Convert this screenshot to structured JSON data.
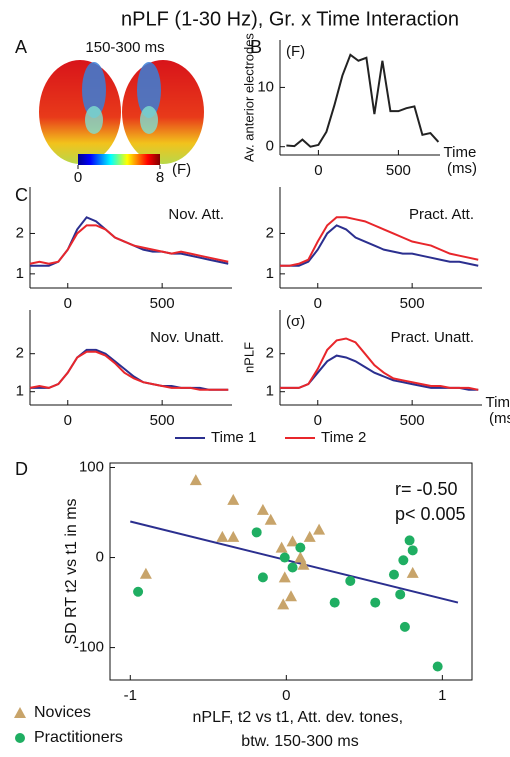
{
  "figure": {
    "title": "nPLF (1-30 Hz), Gr. x Time Interaction"
  },
  "chart_data": [
    {
      "type": "topography",
      "label": "A",
      "title": "150-300 ms",
      "colorbar_ticks": [
        0,
        8
      ],
      "colorbar_label": "(F)"
    },
    {
      "type": "line",
      "label": "B",
      "ylabel": "Av. anterior electrodes",
      "annotation": "(F)",
      "xlabel": "Time (ms)",
      "x": [
        -200,
        -150,
        -100,
        -50,
        0,
        50,
        100,
        150,
        200,
        250,
        300,
        350,
        400,
        450,
        500,
        550,
        600,
        650,
        700,
        750
      ],
      "xlim": [
        -240,
        760
      ],
      "xticks": [
        0,
        500
      ],
      "ylim": [
        -1.4,
        18
      ],
      "yticks": [
        0,
        10
      ],
      "series": [
        {
          "color": "#222222",
          "values": [
            0.2,
            0.1,
            1.2,
            0,
            0.3,
            2.5,
            7,
            12,
            15.5,
            14.5,
            15,
            5.5,
            14.5,
            6,
            6,
            6.5,
            6.8,
            2,
            2.3,
            0.8
          ]
        }
      ]
    },
    {
      "type": "line",
      "label": "C",
      "title": "Nov. Att.",
      "x": [
        -200,
        -150,
        -100,
        -50,
        0,
        50,
        100,
        150,
        200,
        250,
        300,
        350,
        400,
        450,
        500,
        550,
        600,
        650,
        700,
        750,
        800,
        850
      ],
      "xlim": [
        -200,
        870
      ],
      "xticks": [
        0,
        500
      ],
      "ylim": [
        0.65,
        3.15
      ],
      "yticks": [
        1,
        2
      ],
      "series": [
        {
          "color": "#2b2f8f",
          "values": [
            1.2,
            1.2,
            1.2,
            1.3,
            1.6,
            2.1,
            2.4,
            2.3,
            2.1,
            1.9,
            1.8,
            1.7,
            1.6,
            1.55,
            1.55,
            1.5,
            1.5,
            1.45,
            1.4,
            1.35,
            1.3,
            1.25
          ]
        },
        {
          "color": "#e8262b",
          "values": [
            1.25,
            1.3,
            1.25,
            1.3,
            1.6,
            2.0,
            2.2,
            2.2,
            2.1,
            1.9,
            1.8,
            1.7,
            1.65,
            1.6,
            1.55,
            1.5,
            1.55,
            1.5,
            1.45,
            1.4,
            1.35,
            1.3
          ]
        }
      ]
    },
    {
      "type": "line",
      "title": "Pract. Att.",
      "x": [
        -200,
        -150,
        -100,
        -50,
        0,
        50,
        100,
        150,
        200,
        250,
        300,
        350,
        400,
        450,
        500,
        550,
        600,
        650,
        700,
        750,
        800,
        850
      ],
      "xlim": [
        -200,
        870
      ],
      "xticks": [
        0,
        500
      ],
      "ylim": [
        0.65,
        3.15
      ],
      "yticks": [
        1,
        2
      ],
      "series": [
        {
          "color": "#2b2f8f",
          "values": [
            1.2,
            1.2,
            1.2,
            1.3,
            1.6,
            2.0,
            2.2,
            2.1,
            1.9,
            1.8,
            1.7,
            1.6,
            1.55,
            1.5,
            1.5,
            1.45,
            1.4,
            1.35,
            1.3,
            1.3,
            1.25,
            1.2
          ]
        },
        {
          "color": "#e8262b",
          "values": [
            1.2,
            1.2,
            1.25,
            1.35,
            1.8,
            2.2,
            2.4,
            2.4,
            2.35,
            2.3,
            2.2,
            2.1,
            2.0,
            1.9,
            1.8,
            1.75,
            1.7,
            1.6,
            1.5,
            1.45,
            1.4,
            1.35
          ]
        }
      ]
    },
    {
      "type": "line",
      "title": "Nov. Unatt.",
      "x": [
        -200,
        -150,
        -100,
        -50,
        0,
        50,
        100,
        150,
        200,
        250,
        300,
        350,
        400,
        450,
        500,
        550,
        600,
        650,
        700,
        750,
        800,
        850
      ],
      "xlim": [
        -200,
        870
      ],
      "xticks": [
        0,
        500
      ],
      "ylim": [
        0.65,
        3.15
      ],
      "yticks": [
        1,
        2
      ],
      "legend": "bottom",
      "series": [
        {
          "name": "Time 1",
          "color": "#2b2f8f",
          "values": [
            1.1,
            1.1,
            1.1,
            1.2,
            1.5,
            1.9,
            2.1,
            2.1,
            2.0,
            1.8,
            1.6,
            1.4,
            1.25,
            1.2,
            1.15,
            1.15,
            1.1,
            1.1,
            1.1,
            1.05,
            1.05,
            1.05
          ]
        },
        {
          "name": "Time 2",
          "color": "#e8262b",
          "values": [
            1.1,
            1.15,
            1.1,
            1.2,
            1.5,
            1.9,
            2.05,
            2.05,
            1.95,
            1.75,
            1.5,
            1.35,
            1.25,
            1.2,
            1.15,
            1.1,
            1.1,
            1.1,
            1.05,
            1.05,
            1.05,
            1.05
          ]
        }
      ]
    },
    {
      "type": "line",
      "title": "Pract. Unatt.",
      "annotation": "(σ)",
      "ylabel": "nPLF",
      "xlabel": "Time (ms)",
      "x": [
        -200,
        -150,
        -100,
        -50,
        0,
        50,
        100,
        150,
        200,
        250,
        300,
        350,
        400,
        450,
        500,
        550,
        600,
        650,
        700,
        750,
        800,
        850
      ],
      "xlim": [
        -200,
        870
      ],
      "xticks": [
        0,
        500
      ],
      "ylim": [
        0.65,
        3.15
      ],
      "yticks": [
        1,
        2
      ],
      "series": [
        {
          "color": "#2b2f8f",
          "values": [
            1.1,
            1.1,
            1.1,
            1.2,
            1.5,
            1.8,
            1.95,
            1.9,
            1.8,
            1.65,
            1.5,
            1.4,
            1.3,
            1.25,
            1.2,
            1.15,
            1.1,
            1.1,
            1.1,
            1.1,
            1.05,
            1.05
          ]
        },
        {
          "color": "#e8262b",
          "values": [
            1.1,
            1.1,
            1.1,
            1.2,
            1.6,
            2.1,
            2.35,
            2.4,
            2.3,
            2.0,
            1.7,
            1.5,
            1.35,
            1.3,
            1.25,
            1.2,
            1.15,
            1.15,
            1.1,
            1.1,
            1.1,
            1.05
          ]
        }
      ]
    },
    {
      "type": "scatter",
      "label": "D",
      "ylabel": "SD RT t2 vs t1 in ms",
      "xlabel": "nPLF, t2 vs t1, Att. dev. tones, btw. 150-300 ms",
      "annotations": [
        "r= -0.50",
        "p< 0.005"
      ],
      "xlim": [
        -1.13,
        1.19
      ],
      "xticks": [
        -1,
        0,
        1
      ],
      "ylim": [
        -136,
        105
      ],
      "yticks": [
        -100,
        0,
        100
      ],
      "series": [
        {
          "name": "Novices",
          "color": "#c8a46a",
          "marker": "triangle",
          "x": [
            -0.58,
            -0.34,
            -0.9,
            -0.41,
            -0.34,
            -0.15,
            -0.1,
            -0.03,
            0.04,
            -0.01,
            -0.02,
            0.03,
            0.11,
            0.15,
            0.21,
            0.81,
            0.09
          ],
          "values": [
            86,
            64,
            -18,
            23,
            23,
            53,
            42,
            11,
            18,
            -22,
            -52,
            -43,
            -8,
            23,
            31,
            -17,
            0
          ]
        },
        {
          "name": "Practitioners",
          "color": "#1fae62",
          "marker": "circle",
          "x": [
            -0.95,
            -0.19,
            -0.15,
            -0.01,
            0.09,
            0.04,
            0.57,
            0.31,
            0.41,
            0.69,
            0.75,
            0.79,
            0.81,
            0.73,
            0.76,
            0.97
          ],
          "values": [
            -38,
            28,
            -22,
            0,
            11,
            -11,
            -50,
            -50,
            -26,
            -19,
            -3,
            19,
            8,
            -41,
            -77,
            -121
          ]
        }
      ],
      "fit": {
        "color": "#2b2f8f",
        "x": [
          -1,
          1.1
        ],
        "values": [
          40,
          -50
        ]
      }
    }
  ]
}
